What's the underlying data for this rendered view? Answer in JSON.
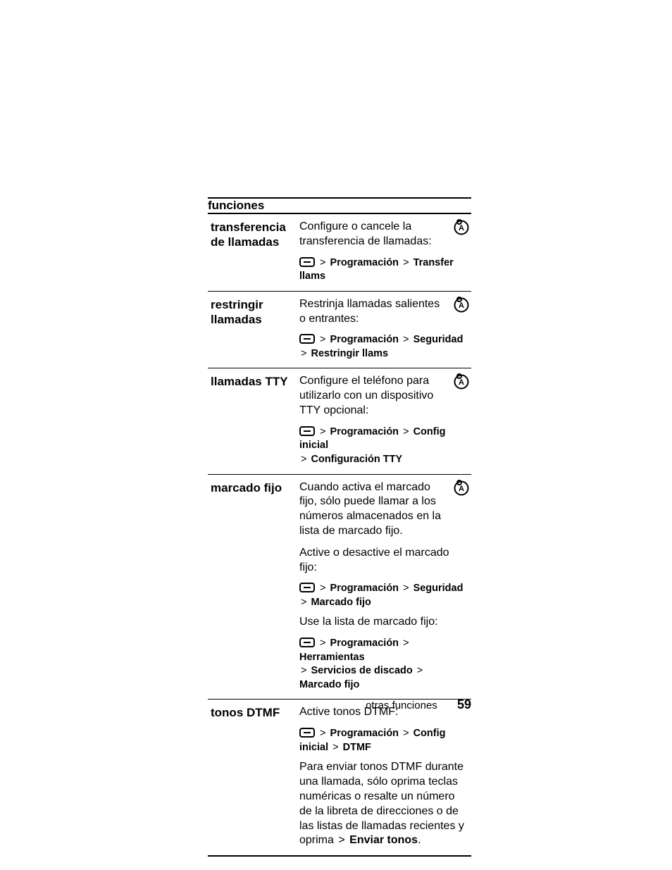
{
  "header": "funciones",
  "rows": [
    {
      "label": "transferencia de llamadas",
      "icon": true,
      "blocks": [
        {
          "type": "desc",
          "withIcon": true,
          "text": "Configure o cancele la transferencia de llamadas:"
        },
        {
          "type": "path",
          "segments": [
            "Programación",
            "Transfer llams"
          ]
        }
      ]
    },
    {
      "label": "restringir llamadas",
      "icon": true,
      "blocks": [
        {
          "type": "desc",
          "withIcon": true,
          "text": "Restrinja llamadas salientes o entrantes:"
        },
        {
          "type": "path",
          "segments": [
            "Programación",
            "Seguridad",
            "Restringir llams"
          ]
        }
      ]
    },
    {
      "label": "llamadas TTY",
      "icon": true,
      "blocks": [
        {
          "type": "desc",
          "withIcon": true,
          "text": "Configure el teléfono para utilizarlo con un dispositivo TTY opcional:"
        },
        {
          "type": "path",
          "segments": [
            "Programación",
            "Config inicial"
          ],
          "cont": [
            "Configuración TTY"
          ]
        }
      ]
    },
    {
      "label": "marcado fijo",
      "icon": true,
      "blocks": [
        {
          "type": "desc",
          "withIcon": true,
          "text": "Cuando activa el marcado fijo, sólo puede llamar a los números almacenados en la lista de marcado fijo."
        },
        {
          "type": "desc",
          "text": "Active o desactive el marcado fijo:"
        },
        {
          "type": "path",
          "segments": [
            "Programación",
            "Seguridad",
            "Marcado fijo"
          ]
        },
        {
          "type": "desc",
          "text": "Use la lista de marcado fijo:"
        },
        {
          "type": "path",
          "segments": [
            "Programación",
            "Herramientas"
          ],
          "cont": [
            "Servicios de discado",
            "Marcado fijo"
          ]
        }
      ]
    },
    {
      "label": "tonos DTMF",
      "icon": false,
      "blocks": [
        {
          "type": "desc",
          "text": "Active tonos DTMF:"
        },
        {
          "type": "path",
          "segments": [
            "Programación",
            "Config inicial",
            "DTMF"
          ]
        },
        {
          "type": "desc-inline",
          "pre": "Para enviar tonos DTMF durante una llamada, sólo oprima teclas numéricas o resalte un número de la libreta de direcciones o de las listas de llamadas recientes y oprima ",
          "tail": "Enviar tonos",
          "period": "."
        }
      ]
    }
  ],
  "footer": {
    "label": "otras funciones",
    "page": "59"
  }
}
